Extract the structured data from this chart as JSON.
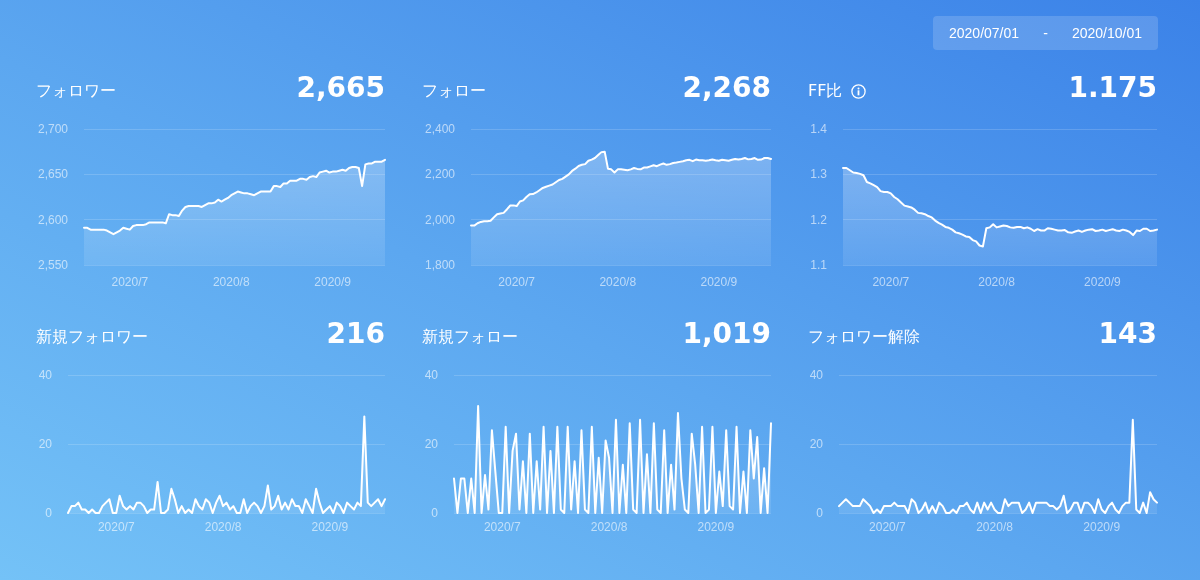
{
  "chart_data": [
    {
      "type": "other",
      "annotations": [
        "2020/07/01",
        "-",
        "2020/10/01"
      ]
    },
    {
      "type": "area",
      "title": "フォロワー",
      "annotations": [
        "2,665"
      ],
      "color": "#ffffff",
      "grid": "y",
      "x": [
        "2020-07-01",
        "2020-07-02",
        "2020-07-03",
        "2020-07-04",
        "2020-07-05",
        "2020-07-06",
        "2020-07-07",
        "2020-07-08",
        "2020-07-09",
        "2020-07-10",
        "2020-07-11",
        "2020-07-12",
        "2020-07-13",
        "2020-07-14",
        "2020-07-15",
        "2020-07-16",
        "2020-07-17",
        "2020-07-18",
        "2020-07-19",
        "2020-07-20",
        "2020-07-21",
        "2020-07-22",
        "2020-07-23",
        "2020-07-24",
        "2020-07-25",
        "2020-07-26",
        "2020-07-27",
        "2020-07-28",
        "2020-07-29",
        "2020-07-30",
        "2020-07-31",
        "2020-08-01",
        "2020-08-02",
        "2020-08-03",
        "2020-08-04",
        "2020-08-05",
        "2020-08-06",
        "2020-08-07",
        "2020-08-08",
        "2020-08-09",
        "2020-08-10",
        "2020-08-11",
        "2020-08-12",
        "2020-08-13",
        "2020-08-14",
        "2020-08-15",
        "2020-08-16",
        "2020-08-17",
        "2020-08-18",
        "2020-08-19",
        "2020-08-20",
        "2020-08-21",
        "2020-08-22",
        "2020-08-23",
        "2020-08-24",
        "2020-08-25",
        "2020-08-26",
        "2020-08-27",
        "2020-08-28",
        "2020-08-29",
        "2020-08-30",
        "2020-08-31",
        "2020-09-01",
        "2020-09-02",
        "2020-09-03",
        "2020-09-04",
        "2020-09-05",
        "2020-09-06",
        "2020-09-07",
        "2020-09-08",
        "2020-09-09",
        "2020-09-10",
        "2020-09-11",
        "2020-09-12",
        "2020-09-13",
        "2020-09-14",
        "2020-09-15",
        "2020-09-16",
        "2020-09-17",
        "2020-09-18",
        "2020-09-19",
        "2020-09-20",
        "2020-09-21",
        "2020-09-22",
        "2020-09-23",
        "2020-09-24",
        "2020-09-25",
        "2020-09-26",
        "2020-09-27",
        "2020-09-28",
        "2020-09-29",
        "2020-09-30",
        "2020-10-01"
      ],
      "values": [
        2591,
        2591,
        2589,
        2589,
        2589,
        2589,
        2589,
        2588,
        2586,
        2584,
        2586,
        2588,
        2591,
        2590,
        2589,
        2593,
        2594,
        2594,
        2594,
        2595,
        2597,
        2597,
        2597,
        2597,
        2597,
        2596,
        2606,
        2605,
        2605,
        2604,
        2610,
        2614,
        2615,
        2615,
        2615,
        2615,
        2614,
        2616,
        2618,
        2618,
        2619,
        2622,
        2620,
        2622,
        2624,
        2627,
        2629,
        2631,
        2630,
        2629,
        2629,
        2628,
        2627,
        2629,
        2631,
        2631,
        2631,
        2631,
        2637,
        2637,
        2636,
        2640,
        2640,
        2643,
        2643,
        2643,
        2645,
        2645,
        2644,
        2647,
        2648,
        2647,
        2652,
        2653,
        2654,
        2652,
        2653,
        2653,
        2654,
        2655,
        2654,
        2657,
        2658,
        2658,
        2657,
        2637,
        2661,
        2662,
        2662,
        2664,
        2664,
        2664,
        2666
      ],
      "xlim": [
        "2020-07-01",
        "2020-10-01"
      ],
      "xticks": [
        {
          "value": "2020-07-15",
          "label": "2020/7"
        },
        {
          "value": "2020-08-15",
          "label": "2020/8"
        },
        {
          "value": "2020-09-15",
          "label": "2020/9"
        }
      ],
      "ylim": [
        2550,
        2700
      ],
      "yticks": [
        {
          "value": 2550,
          "label": "2,550"
        },
        {
          "value": 2600,
          "label": "2,600"
        },
        {
          "value": 2650,
          "label": "2,650"
        },
        {
          "value": 2700,
          "label": "2,700"
        }
      ]
    },
    {
      "type": "area",
      "title": "フォロー",
      "annotations": [
        "2,268"
      ],
      "color": "#ffffff",
      "grid": "y",
      "x": [
        "2020-07-01",
        "2020-07-02",
        "2020-07-03",
        "2020-07-04",
        "2020-07-05",
        "2020-07-06",
        "2020-07-07",
        "2020-07-08",
        "2020-07-09",
        "2020-07-10",
        "2020-07-11",
        "2020-07-12",
        "2020-07-13",
        "2020-07-14",
        "2020-07-15",
        "2020-07-16",
        "2020-07-17",
        "2020-07-18",
        "2020-07-19",
        "2020-07-20",
        "2020-07-21",
        "2020-07-22",
        "2020-07-23",
        "2020-07-24",
        "2020-07-25",
        "2020-07-26",
        "2020-07-27",
        "2020-07-28",
        "2020-07-29",
        "2020-07-30",
        "2020-07-31",
        "2020-08-01",
        "2020-08-02",
        "2020-08-03",
        "2020-08-04",
        "2020-08-05",
        "2020-08-06",
        "2020-08-07",
        "2020-08-08",
        "2020-08-09",
        "2020-08-10",
        "2020-08-11",
        "2020-08-12",
        "2020-08-13",
        "2020-08-14",
        "2020-08-15",
        "2020-08-16",
        "2020-08-17",
        "2020-08-18",
        "2020-08-19",
        "2020-08-20",
        "2020-08-21",
        "2020-08-22",
        "2020-08-23",
        "2020-08-24",
        "2020-08-25",
        "2020-08-26",
        "2020-08-27",
        "2020-08-28",
        "2020-08-29",
        "2020-08-30",
        "2020-08-31",
        "2020-09-01",
        "2020-09-02",
        "2020-09-03",
        "2020-09-04",
        "2020-09-05",
        "2020-09-06",
        "2020-09-07",
        "2020-09-08",
        "2020-09-09",
        "2020-09-10",
        "2020-09-11",
        "2020-09-12",
        "2020-09-13",
        "2020-09-14",
        "2020-09-15",
        "2020-09-16",
        "2020-09-17",
        "2020-09-18",
        "2020-09-19",
        "2020-09-20",
        "2020-09-21",
        "2020-09-22",
        "2020-09-23",
        "2020-09-24",
        "2020-09-25",
        "2020-09-26",
        "2020-09-27",
        "2020-09-28",
        "2020-09-29",
        "2020-09-30",
        "2020-10-01"
      ],
      "values": [
        1974,
        1974,
        1984,
        1990,
        1993,
        1993,
        1995,
        2010,
        2024,
        2027,
        2030,
        2045,
        2062,
        2063,
        2060,
        2080,
        2085,
        2100,
        2112,
        2113,
        2120,
        2130,
        2140,
        2145,
        2150,
        2155,
        2165,
        2175,
        2180,
        2190,
        2200,
        2215,
        2225,
        2237,
        2242,
        2245,
        2260,
        2265,
        2272,
        2285,
        2298,
        2300,
        2225,
        2222,
        2208,
        2222,
        2222,
        2220,
        2218,
        2222,
        2228,
        2224,
        2222,
        2230,
        2230,
        2235,
        2240,
        2236,
        2243,
        2248,
        2242,
        2245,
        2250,
        2252,
        2255,
        2258,
        2262,
        2264,
        2258,
        2265,
        2262,
        2262,
        2260,
        2262,
        2265,
        2262,
        2260,
        2264,
        2262,
        2260,
        2264,
        2268,
        2265,
        2268,
        2272,
        2266,
        2268,
        2272,
        2264,
        2265,
        2272,
        2272,
        2268
      ],
      "xlim": [
        "2020-07-01",
        "2020-10-01"
      ],
      "xticks": [
        {
          "value": "2020-07-15",
          "label": "2020/7"
        },
        {
          "value": "2020-08-15",
          "label": "2020/8"
        },
        {
          "value": "2020-09-15",
          "label": "2020/9"
        }
      ],
      "ylim": [
        1800,
        2400
      ],
      "yticks": [
        {
          "value": 1800,
          "label": "1,800"
        },
        {
          "value": 2000,
          "label": "2,000"
        },
        {
          "value": 2200,
          "label": "2,200"
        },
        {
          "value": 2400,
          "label": "2,400"
        }
      ]
    },
    {
      "type": "area",
      "title": "FF比",
      "annotations": [
        "1.175"
      ],
      "color": "#ffffff",
      "grid": "y",
      "x": [
        "2020-07-01",
        "2020-07-02",
        "2020-07-03",
        "2020-07-04",
        "2020-07-05",
        "2020-07-06",
        "2020-07-07",
        "2020-07-08",
        "2020-07-09",
        "2020-07-10",
        "2020-07-11",
        "2020-07-12",
        "2020-07-13",
        "2020-07-14",
        "2020-07-15",
        "2020-07-16",
        "2020-07-17",
        "2020-07-18",
        "2020-07-19",
        "2020-07-20",
        "2020-07-21",
        "2020-07-22",
        "2020-07-23",
        "2020-07-24",
        "2020-07-25",
        "2020-07-26",
        "2020-07-27",
        "2020-07-28",
        "2020-07-29",
        "2020-07-30",
        "2020-07-31",
        "2020-08-01",
        "2020-08-02",
        "2020-08-03",
        "2020-08-04",
        "2020-08-05",
        "2020-08-06",
        "2020-08-07",
        "2020-08-08",
        "2020-08-09",
        "2020-08-10",
        "2020-08-11",
        "2020-08-12",
        "2020-08-13",
        "2020-08-14",
        "2020-08-15",
        "2020-08-16",
        "2020-08-17",
        "2020-08-18",
        "2020-08-19",
        "2020-08-20",
        "2020-08-21",
        "2020-08-22",
        "2020-08-23",
        "2020-08-24",
        "2020-08-25",
        "2020-08-26",
        "2020-08-27",
        "2020-08-28",
        "2020-08-29",
        "2020-08-30",
        "2020-08-31",
        "2020-09-01",
        "2020-09-02",
        "2020-09-03",
        "2020-09-04",
        "2020-09-05",
        "2020-09-06",
        "2020-09-07",
        "2020-09-08",
        "2020-09-09",
        "2020-09-10",
        "2020-09-11",
        "2020-09-12",
        "2020-09-13",
        "2020-09-14",
        "2020-09-15",
        "2020-09-16",
        "2020-09-17",
        "2020-09-18",
        "2020-09-19",
        "2020-09-20",
        "2020-09-21",
        "2020-09-22",
        "2020-09-23",
        "2020-09-24",
        "2020-09-25",
        "2020-09-26",
        "2020-09-27",
        "2020-09-28",
        "2020-09-29",
        "2020-09-30",
        "2020-10-01"
      ],
      "values": [
        1.314,
        1.314,
        1.309,
        1.304,
        1.303,
        1.301,
        1.298,
        1.283,
        1.28,
        1.276,
        1.272,
        1.263,
        1.261,
        1.261,
        1.258,
        1.25,
        1.245,
        1.238,
        1.231,
        1.229,
        1.227,
        1.222,
        1.215,
        1.214,
        1.212,
        1.208,
        1.205,
        1.198,
        1.193,
        1.189,
        1.184,
        1.182,
        1.178,
        1.172,
        1.17,
        1.167,
        1.163,
        1.162,
        1.155,
        1.152,
        1.143,
        1.141,
        1.181,
        1.183,
        1.19,
        1.183,
        1.185,
        1.187,
        1.186,
        1.183,
        1.182,
        1.184,
        1.184,
        1.181,
        1.183,
        1.18,
        1.175,
        1.179,
        1.176,
        1.176,
        1.181,
        1.18,
        1.178,
        1.176,
        1.176,
        1.177,
        1.172,
        1.171,
        1.174,
        1.176,
        1.173,
        1.176,
        1.178,
        1.179,
        1.175,
        1.176,
        1.178,
        1.175,
        1.177,
        1.179,
        1.176,
        1.175,
        1.178,
        1.176,
        1.173,
        1.166,
        1.176,
        1.175,
        1.18,
        1.18,
        1.175,
        1.176,
        1.178
      ],
      "xlim": [
        "2020-07-01",
        "2020-10-01"
      ],
      "xticks": [
        {
          "value": "2020-07-15",
          "label": "2020/7"
        },
        {
          "value": "2020-08-15",
          "label": "2020/8"
        },
        {
          "value": "2020-09-15",
          "label": "2020/9"
        }
      ],
      "ylim": [
        1.1,
        1.4
      ],
      "yticks": [
        1.1,
        1.2,
        1.3,
        1.4
      ]
    },
    {
      "type": "area",
      "title": "新規フォロワー",
      "annotations": [
        "216"
      ],
      "color": "#ffffff",
      "grid": "y",
      "x": [
        "2020-07-01",
        "2020-07-02",
        "2020-07-03",
        "2020-07-04",
        "2020-07-05",
        "2020-07-06",
        "2020-07-07",
        "2020-07-08",
        "2020-07-09",
        "2020-07-10",
        "2020-07-11",
        "2020-07-12",
        "2020-07-13",
        "2020-07-14",
        "2020-07-15",
        "2020-07-16",
        "2020-07-17",
        "2020-07-18",
        "2020-07-19",
        "2020-07-20",
        "2020-07-21",
        "2020-07-22",
        "2020-07-23",
        "2020-07-24",
        "2020-07-25",
        "2020-07-26",
        "2020-07-27",
        "2020-07-28",
        "2020-07-29",
        "2020-07-30",
        "2020-07-31",
        "2020-08-01",
        "2020-08-02",
        "2020-08-03",
        "2020-08-04",
        "2020-08-05",
        "2020-08-06",
        "2020-08-07",
        "2020-08-08",
        "2020-08-09",
        "2020-08-10",
        "2020-08-11",
        "2020-08-12",
        "2020-08-13",
        "2020-08-14",
        "2020-08-15",
        "2020-08-16",
        "2020-08-17",
        "2020-08-18",
        "2020-08-19",
        "2020-08-20",
        "2020-08-21",
        "2020-08-22",
        "2020-08-23",
        "2020-08-24",
        "2020-08-25",
        "2020-08-26",
        "2020-08-27",
        "2020-08-28",
        "2020-08-29",
        "2020-08-30",
        "2020-08-31",
        "2020-09-01",
        "2020-09-02",
        "2020-09-03",
        "2020-09-04",
        "2020-09-05",
        "2020-09-06",
        "2020-09-07",
        "2020-09-08",
        "2020-09-09",
        "2020-09-10",
        "2020-09-11",
        "2020-09-12",
        "2020-09-13",
        "2020-09-14",
        "2020-09-15",
        "2020-09-16",
        "2020-09-17",
        "2020-09-18",
        "2020-09-19",
        "2020-09-20",
        "2020-09-21",
        "2020-09-22",
        "2020-09-23",
        "2020-09-24",
        "2020-09-25",
        "2020-09-26",
        "2020-09-27",
        "2020-09-28",
        "2020-09-29",
        "2020-09-30",
        "2020-10-01"
      ],
      "values": [
        0,
        2,
        2,
        3,
        1,
        1,
        0,
        1,
        0,
        0,
        2,
        3,
        4,
        0,
        0,
        5,
        2,
        1,
        2,
        1,
        3,
        3,
        2,
        0,
        1,
        1,
        9,
        0,
        0,
        1,
        7,
        4,
        0,
        2,
        0,
        1,
        0,
        4,
        2,
        1,
        4,
        3,
        0,
        3,
        5,
        2,
        3,
        1,
        2,
        0,
        0,
        4,
        0,
        2,
        3,
        2,
        0,
        2,
        8,
        1,
        2,
        5,
        1,
        3,
        1,
        4,
        2,
        2,
        0,
        4,
        2,
        0,
        7,
        3,
        0,
        1,
        2,
        0,
        3,
        2,
        0,
        3,
        2,
        1,
        3,
        2,
        28,
        3,
        2,
        3,
        4,
        2,
        4
      ],
      "xlim": [
        "2020-07-01",
        "2020-10-01"
      ],
      "xticks": [
        {
          "value": "2020-07-15",
          "label": "2020/7"
        },
        {
          "value": "2020-08-15",
          "label": "2020/8"
        },
        {
          "value": "2020-09-15",
          "label": "2020/9"
        }
      ],
      "ylim": [
        0,
        40
      ],
      "yticks": [
        0,
        20,
        40
      ]
    },
    {
      "type": "area",
      "title": "新規フォロー",
      "annotations": [
        "1,019"
      ],
      "color": "#ffffff",
      "grid": "y",
      "x": [
        "2020-07-01",
        "2020-07-02",
        "2020-07-03",
        "2020-07-04",
        "2020-07-05",
        "2020-07-06",
        "2020-07-07",
        "2020-07-08",
        "2020-07-09",
        "2020-07-10",
        "2020-07-11",
        "2020-07-12",
        "2020-07-13",
        "2020-07-14",
        "2020-07-15",
        "2020-07-16",
        "2020-07-17",
        "2020-07-18",
        "2020-07-19",
        "2020-07-20",
        "2020-07-21",
        "2020-07-22",
        "2020-07-23",
        "2020-07-24",
        "2020-07-25",
        "2020-07-26",
        "2020-07-27",
        "2020-07-28",
        "2020-07-29",
        "2020-07-30",
        "2020-07-31",
        "2020-08-01",
        "2020-08-02",
        "2020-08-03",
        "2020-08-04",
        "2020-08-05",
        "2020-08-06",
        "2020-08-07",
        "2020-08-08",
        "2020-08-09",
        "2020-08-10",
        "2020-08-11",
        "2020-08-12",
        "2020-08-13",
        "2020-08-14",
        "2020-08-15",
        "2020-08-16",
        "2020-08-17",
        "2020-08-18",
        "2020-08-19",
        "2020-08-20",
        "2020-08-21",
        "2020-08-22",
        "2020-08-23",
        "2020-08-24",
        "2020-08-25",
        "2020-08-26",
        "2020-08-27",
        "2020-08-28",
        "2020-08-29",
        "2020-08-30",
        "2020-08-31",
        "2020-09-01",
        "2020-09-02",
        "2020-09-03",
        "2020-09-04",
        "2020-09-05",
        "2020-09-06",
        "2020-09-07",
        "2020-09-08",
        "2020-09-09",
        "2020-09-10",
        "2020-09-11",
        "2020-09-12",
        "2020-09-13",
        "2020-09-14",
        "2020-09-15",
        "2020-09-16",
        "2020-09-17",
        "2020-09-18",
        "2020-09-19",
        "2020-09-20",
        "2020-09-21",
        "2020-09-22",
        "2020-09-23",
        "2020-09-24",
        "2020-09-25",
        "2020-09-26",
        "2020-09-27",
        "2020-09-28",
        "2020-09-29",
        "2020-09-30",
        "2020-10-01"
      ],
      "values": [
        10,
        0,
        10,
        10,
        0,
        10,
        0,
        31,
        0,
        11,
        1,
        24,
        12,
        0,
        0,
        25,
        0,
        18,
        23,
        1,
        15,
        0,
        23,
        0,
        15,
        1,
        25,
        0,
        18,
        0,
        25,
        1,
        0,
        25,
        1,
        15,
        0,
        24,
        1,
        0,
        25,
        0,
        16,
        0,
        21,
        16,
        0,
        27,
        0,
        14,
        0,
        26,
        1,
        0,
        27,
        0,
        17,
        0,
        26,
        1,
        0,
        24,
        0,
        14,
        1,
        29,
        10,
        1,
        0,
        23,
        14,
        0,
        25,
        0,
        1,
        25,
        0,
        12,
        2,
        24,
        2,
        1,
        25,
        0,
        12,
        0,
        24,
        10,
        22,
        0,
        13,
        0,
        26
      ],
      "xlim": [
        "2020-07-01",
        "2020-10-01"
      ],
      "xticks": [
        {
          "value": "2020-07-15",
          "label": "2020/7"
        },
        {
          "value": "2020-08-15",
          "label": "2020/8"
        },
        {
          "value": "2020-09-15",
          "label": "2020/9"
        }
      ],
      "ylim": [
        0,
        40
      ],
      "yticks": [
        0,
        20,
        40
      ]
    },
    {
      "type": "area",
      "title": "フォロワー解除",
      "annotations": [
        "143"
      ],
      "color": "#ffffff",
      "grid": "y",
      "x": [
        "2020-07-01",
        "2020-07-02",
        "2020-07-03",
        "2020-07-04",
        "2020-07-05",
        "2020-07-06",
        "2020-07-07",
        "2020-07-08",
        "2020-07-09",
        "2020-07-10",
        "2020-07-11",
        "2020-07-12",
        "2020-07-13",
        "2020-07-14",
        "2020-07-15",
        "2020-07-16",
        "2020-07-17",
        "2020-07-18",
        "2020-07-19",
        "2020-07-20",
        "2020-07-21",
        "2020-07-22",
        "2020-07-23",
        "2020-07-24",
        "2020-07-25",
        "2020-07-26",
        "2020-07-27",
        "2020-07-28",
        "2020-07-29",
        "2020-07-30",
        "2020-07-31",
        "2020-08-01",
        "2020-08-02",
        "2020-08-03",
        "2020-08-04",
        "2020-08-05",
        "2020-08-06",
        "2020-08-07",
        "2020-08-08",
        "2020-08-09",
        "2020-08-10",
        "2020-08-11",
        "2020-08-12",
        "2020-08-13",
        "2020-08-14",
        "2020-08-15",
        "2020-08-16",
        "2020-08-17",
        "2020-08-18",
        "2020-08-19",
        "2020-08-20",
        "2020-08-21",
        "2020-08-22",
        "2020-08-23",
        "2020-08-24",
        "2020-08-25",
        "2020-08-26",
        "2020-08-27",
        "2020-08-28",
        "2020-08-29",
        "2020-08-30",
        "2020-08-31",
        "2020-09-01",
        "2020-09-02",
        "2020-09-03",
        "2020-09-04",
        "2020-09-05",
        "2020-09-06",
        "2020-09-07",
        "2020-09-08",
        "2020-09-09",
        "2020-09-10",
        "2020-09-11",
        "2020-09-12",
        "2020-09-13",
        "2020-09-14",
        "2020-09-15",
        "2020-09-16",
        "2020-09-17",
        "2020-09-18",
        "2020-09-19",
        "2020-09-20",
        "2020-09-21",
        "2020-09-22",
        "2020-09-23",
        "2020-09-24",
        "2020-09-25",
        "2020-09-26",
        "2020-09-27",
        "2020-09-28",
        "2020-09-29",
        "2020-09-30",
        "2020-10-01"
      ],
      "values": [
        2,
        3,
        4,
        3,
        2,
        2,
        2,
        4,
        3,
        2,
        0,
        1,
        0,
        2,
        2,
        2,
        3,
        2,
        2,
        2,
        0,
        4,
        3,
        0,
        1,
        3,
        0,
        2,
        0,
        3,
        2,
        0,
        0,
        1,
        0,
        2,
        2,
        3,
        1,
        0,
        3,
        0,
        3,
        1,
        3,
        1,
        0,
        0,
        4,
        2,
        3,
        3,
        3,
        0,
        1,
        3,
        0,
        3,
        3,
        3,
        3,
        2,
        2,
        1,
        2,
        5,
        0,
        1,
        3,
        3,
        0,
        3,
        3,
        2,
        0,
        4,
        1,
        0,
        2,
        3,
        1,
        0,
        2,
        3,
        3,
        27,
        1,
        0,
        3,
        0,
        6,
        4,
        3
      ],
      "xlim": [
        "2020-07-01",
        "2020-10-01"
      ],
      "xticks": [
        {
          "value": "2020-07-15",
          "label": "2020/7"
        },
        {
          "value": "2020-08-15",
          "label": "2020/8"
        },
        {
          "value": "2020-09-15",
          "label": "2020/9"
        }
      ],
      "ylim": [
        0,
        40
      ],
      "yticks": [
        0,
        20,
        40
      ]
    }
  ]
}
